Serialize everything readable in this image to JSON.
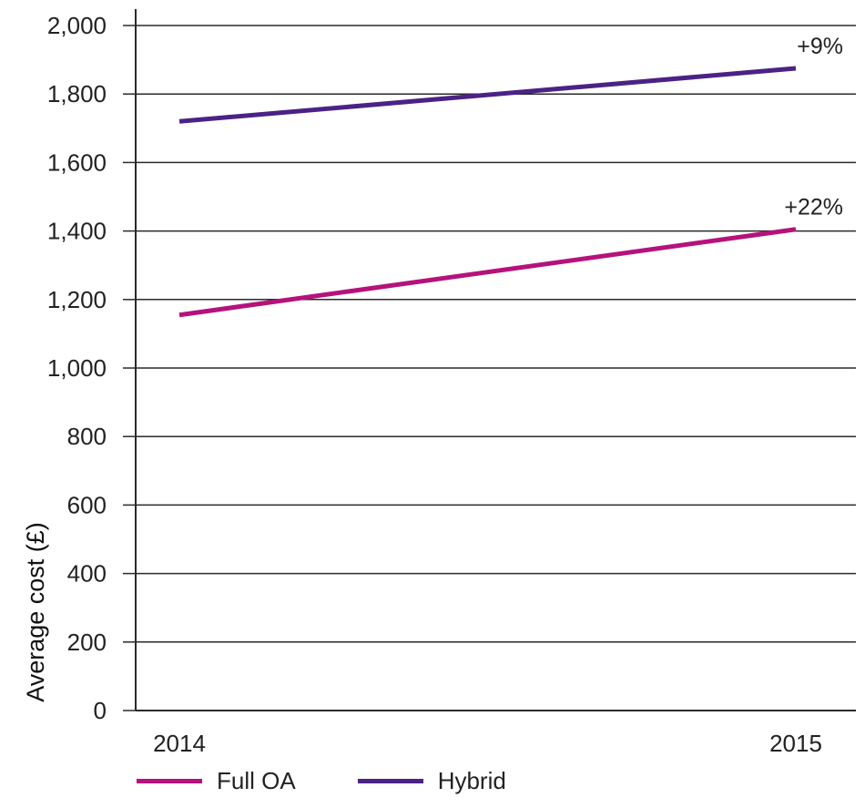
{
  "chart_data": {
    "type": "line",
    "x": [
      "2014",
      "2015"
    ],
    "ylabel": "Average cost (£)",
    "ylim": [
      0,
      2000
    ],
    "yticks": [
      "0",
      "200",
      "400",
      "600",
      "800",
      "1,000",
      "1,200",
      "1,400",
      "1,600",
      "1,800",
      "2,000"
    ],
    "grid": true,
    "legend_position": "bottom",
    "series": [
      {
        "name": "Full OA",
        "values": [
          1155,
          1405
        ],
        "color": "#b5127c",
        "annotation": "+22%"
      },
      {
        "name": "Hybrid",
        "values": [
          1720,
          1875
        ],
        "color": "#4b2285",
        "annotation": "+9%"
      }
    ]
  }
}
